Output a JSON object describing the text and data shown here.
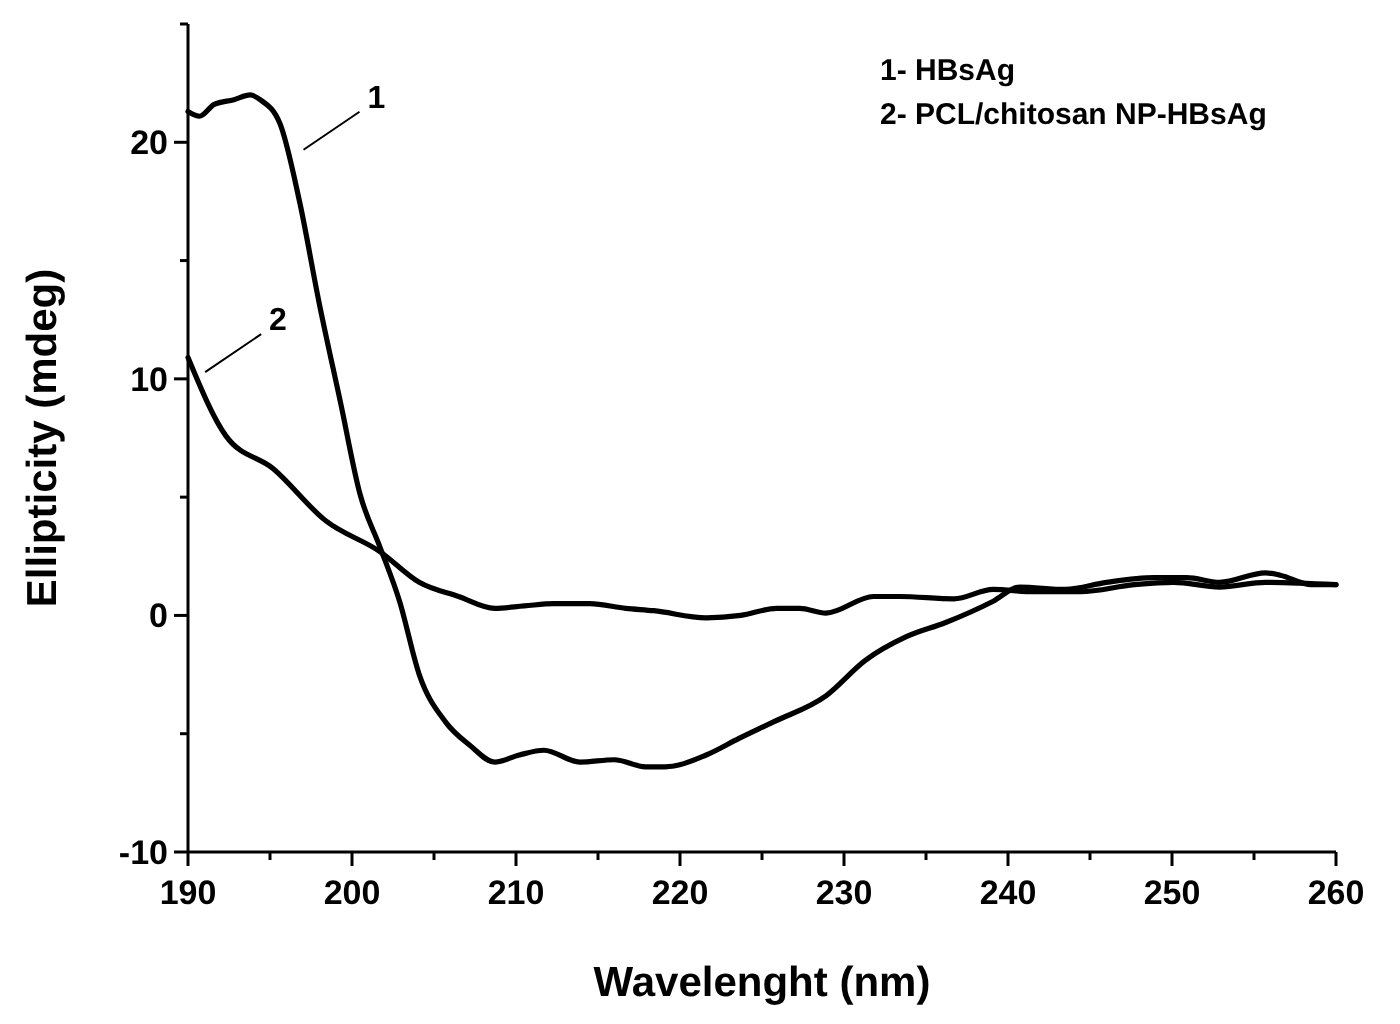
{
  "chart_data": {
    "type": "line",
    "xlabel": "Wavelenght (nm)",
    "ylabel": "Ellipticity (mdeg)",
    "xlim": [
      190,
      260
    ],
    "xticks": [
      190,
      {
        "value": 195,
        "label": null
      },
      200,
      {
        "value": 205,
        "label": null
      },
      210,
      {
        "value": 215,
        "label": null
      },
      220,
      {
        "value": 225,
        "label": null
      },
      230,
      {
        "value": 235,
        "label": null
      },
      240,
      {
        "value": 245,
        "label": null
      },
      250,
      {
        "value": 255,
        "label": null
      },
      260
    ],
    "ylim": [
      -10,
      25
    ],
    "yticks": [
      -10,
      {
        "value": -5,
        "label": null
      },
      0,
      {
        "value": 5,
        "label": null
      },
      10,
      {
        "value": 15,
        "label": null
      },
      20,
      {
        "value": 25,
        "label": null
      }
    ],
    "grid": false,
    "marker": "none",
    "line_style": "solid",
    "series": [
      {
        "color": "#000000",
        "x": [
          190,
          190.7,
          191.6,
          192.8,
          193.8,
          194.4,
          195.6,
          196.8,
          198.0,
          199.3,
          200.5,
          201.7,
          202.9,
          204.1,
          205.7,
          207.2,
          208.7,
          210.2,
          211.7,
          213.9,
          216.0,
          217.9,
          219.1,
          221.6,
          223.6,
          225.7,
          228.9,
          231.3,
          233.8,
          236.2,
          239.1,
          240.7,
          243.5,
          246.0,
          248.9,
          250.9,
          252.9,
          255.7,
          256.6,
          258.5,
          260
        ],
        "values": [
          21.3,
          21.1,
          21.6,
          21.8,
          22.0,
          21.8,
          20.8,
          17.5,
          13.2,
          9.0,
          5.1,
          2.9,
          0.6,
          -2.5,
          -4.5,
          -5.5,
          -6.2,
          -5.9,
          -5.7,
          -6.2,
          -6.1,
          -6.4,
          -6.4,
          -5.9,
          -5.2,
          -4.5,
          -3.4,
          -1.9,
          -0.9,
          -0.3,
          0.6,
          1.2,
          1.1,
          1.4,
          1.6,
          1.6,
          1.4,
          1.8,
          1.7,
          1.3,
          1.3
        ]
      },
      {
        "color": "#000000",
        "x": [
          190,
          192.3,
          195.2,
          198.4,
          201.7,
          204.1,
          206.5,
          208.7,
          210.5,
          212.3,
          214.5,
          216.7,
          218.4,
          221.6,
          223.7,
          225.9,
          227.3,
          228.9,
          231.8,
          233.4,
          236.7,
          239.1,
          241.6,
          244.4,
          247.7,
          250.1,
          252.9,
          255.7,
          260
        ],
        "values": [
          10.9,
          7.6,
          6.2,
          4.0,
          2.7,
          1.4,
          0.8,
          0.3,
          0.4,
          0.5,
          0.5,
          0.3,
          0.2,
          -0.1,
          0,
          0.3,
          0.3,
          0.1,
          0.8,
          0.8,
          0.7,
          1.1,
          1.0,
          1.0,
          1.3,
          1.4,
          1.2,
          1.4,
          1.3
        ]
      }
    ],
    "annotations": [
      {
        "text": "1",
        "x": 196.8,
        "y": 19.6
      },
      {
        "text": "2",
        "x": 190.8,
        "y": 10.2
      },
      "1- HBsAg",
      "2- PCL/chitosan NP-HBsAg"
    ]
  }
}
